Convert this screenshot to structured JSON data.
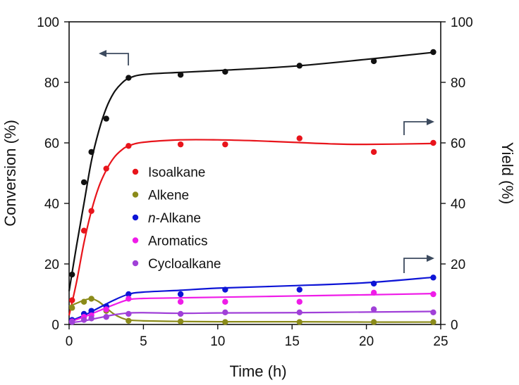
{
  "chart_data": {
    "type": "scatter",
    "xlabel": "Time (h)",
    "ylabel_left": "Conversion (%)",
    "ylabel_right": "Yield (%)",
    "xlim": [
      0,
      25
    ],
    "ylim": [
      0,
      100
    ],
    "xticks": [
      "0",
      "5",
      "10",
      "15",
      "20",
      "25"
    ],
    "yticks": [
      "0",
      "20",
      "40",
      "60",
      "80",
      "100"
    ],
    "grid": false,
    "legend_position": "center-left",
    "series": [
      {
        "name": "Conversion",
        "axis": "left",
        "color": "#111111",
        "in_legend": false,
        "x": [
          0.2,
          1.0,
          1.5,
          2.5,
          4.0,
          7.5,
          10.5,
          15.5,
          20.5,
          24.5
        ],
        "y": [
          16.5,
          47.0,
          57.0,
          68.0,
          81.5,
          82.5,
          83.5,
          85.5,
          87.0,
          90.0
        ],
        "fit": [
          [
            0,
            11
          ],
          [
            0.5,
            26
          ],
          [
            1,
            40
          ],
          [
            1.5,
            54
          ],
          [
            2,
            64
          ],
          [
            2.5,
            71.5
          ],
          [
            3,
            76.5
          ],
          [
            3.5,
            79.5
          ],
          [
            4,
            81.3
          ],
          [
            5,
            82.6
          ],
          [
            7.5,
            83.3
          ],
          [
            10,
            83.9
          ],
          [
            15,
            85.3
          ],
          [
            20,
            87.6
          ],
          [
            24.5,
            89.9
          ]
        ]
      },
      {
        "name": "Isoalkane",
        "axis": "right",
        "color": "#e8141b",
        "in_legend": true,
        "x": [
          0.2,
          1.0,
          1.5,
          2.5,
          4.0,
          7.5,
          10.5,
          15.5,
          20.5,
          24.5
        ],
        "y": [
          8.0,
          31.0,
          37.5,
          51.5,
          59.0,
          59.5,
          59.5,
          61.5,
          57.0,
          60.0
        ],
        "fit": [
          [
            0,
            3
          ],
          [
            0.5,
            14
          ],
          [
            1,
            27
          ],
          [
            1.5,
            37.5
          ],
          [
            2,
            45.5
          ],
          [
            2.5,
            51
          ],
          [
            3,
            55
          ],
          [
            3.5,
            57.5
          ],
          [
            4,
            59
          ],
          [
            5,
            60.2
          ],
          [
            7.5,
            61
          ],
          [
            10,
            61
          ],
          [
            12.5,
            60.7
          ],
          [
            15,
            60.2
          ],
          [
            17.5,
            59.7
          ],
          [
            20,
            59.5
          ],
          [
            24.5,
            59.8
          ]
        ]
      },
      {
        "name": "Alkene",
        "axis": "right",
        "color": "#8b8b1a",
        "in_legend": true,
        "x": [
          0.2,
          1.0,
          1.5,
          2.5,
          4.0,
          7.5,
          10.5,
          15.5,
          20.5,
          24.5
        ],
        "y": [
          5.5,
          7.5,
          8.5,
          4.5,
          1.2,
          1.0,
          0.8,
          0.8,
          0.8,
          0.8
        ],
        "fit": [
          [
            0,
            6
          ],
          [
            0.5,
            7
          ],
          [
            1,
            8
          ],
          [
            1.5,
            8.5
          ],
          [
            2,
            7.5
          ],
          [
            2.5,
            5.5
          ],
          [
            3,
            3.5
          ],
          [
            3.5,
            2.2
          ],
          [
            4,
            1.5
          ],
          [
            5,
            1.2
          ],
          [
            7.5,
            1.0
          ],
          [
            10,
            0.9
          ],
          [
            15,
            0.9
          ],
          [
            20,
            0.8
          ],
          [
            24.5,
            0.8
          ]
        ]
      },
      {
        "name": "n-Alkane",
        "axis": "right",
        "color": "#0d14d6",
        "in_legend": true,
        "x": [
          0.2,
          1.0,
          1.5,
          2.5,
          4.0,
          7.5,
          10.5,
          15.5,
          20.5,
          24.5
        ],
        "y": [
          1.5,
          3.5,
          4.5,
          6.0,
          10.0,
          10.0,
          11.5,
          11.5,
          13.5,
          15.5
        ],
        "fit": [
          [
            0,
            1
          ],
          [
            1,
            3
          ],
          [
            2,
            5.5
          ],
          [
            3,
            8
          ],
          [
            4,
            10
          ],
          [
            5,
            10.7
          ],
          [
            7.5,
            11.3
          ],
          [
            10,
            12
          ],
          [
            15,
            12.8
          ],
          [
            20,
            13.8
          ],
          [
            24.5,
            15.6
          ]
        ]
      },
      {
        "name": "Aromatics",
        "axis": "right",
        "color": "#ef1ce8",
        "in_legend": true,
        "x": [
          0.2,
          1.0,
          1.5,
          2.5,
          4.0,
          7.5,
          10.5,
          15.5,
          20.5,
          24.5
        ],
        "y": [
          1.0,
          2.5,
          3.0,
          5.0,
          8.5,
          7.5,
          7.5,
          7.5,
          10.5,
          10.0
        ],
        "fit": [
          [
            0,
            0.8
          ],
          [
            1,
            2.5
          ],
          [
            2,
            4.5
          ],
          [
            3,
            6.5
          ],
          [
            4,
            8.2
          ],
          [
            5,
            8.6
          ],
          [
            7.5,
            8.8
          ],
          [
            10,
            9.0
          ],
          [
            15,
            9.4
          ],
          [
            20,
            9.8
          ],
          [
            24.5,
            10.2
          ]
        ]
      },
      {
        "name": "Cycloalkane",
        "axis": "right",
        "color": "#a040d8",
        "in_legend": true,
        "x": [
          0.2,
          1.0,
          1.5,
          2.5,
          4.0,
          7.5,
          10.5,
          15.5,
          20.5,
          24.5
        ],
        "y": [
          0.8,
          1.5,
          2.0,
          2.5,
          3.5,
          3.5,
          4.0,
          4.0,
          5.0,
          4.0
        ],
        "fit": [
          [
            0,
            0.5
          ],
          [
            1,
            1.2
          ],
          [
            2,
            2.2
          ],
          [
            3,
            3.2
          ],
          [
            4,
            3.8
          ],
          [
            5,
            3.9
          ],
          [
            7.5,
            3.7
          ],
          [
            10,
            3.8
          ],
          [
            15,
            3.9
          ],
          [
            20,
            4.1
          ],
          [
            24.5,
            4.3
          ]
        ]
      }
    ],
    "annotations": [
      {
        "type": "arrow-left",
        "meaning": "Conversion series read on left axis"
      },
      {
        "type": "arrow-right",
        "meaning": "Isoalkane series read on right axis"
      },
      {
        "type": "arrow-right",
        "meaning": "Lower series read on right axis"
      }
    ]
  }
}
